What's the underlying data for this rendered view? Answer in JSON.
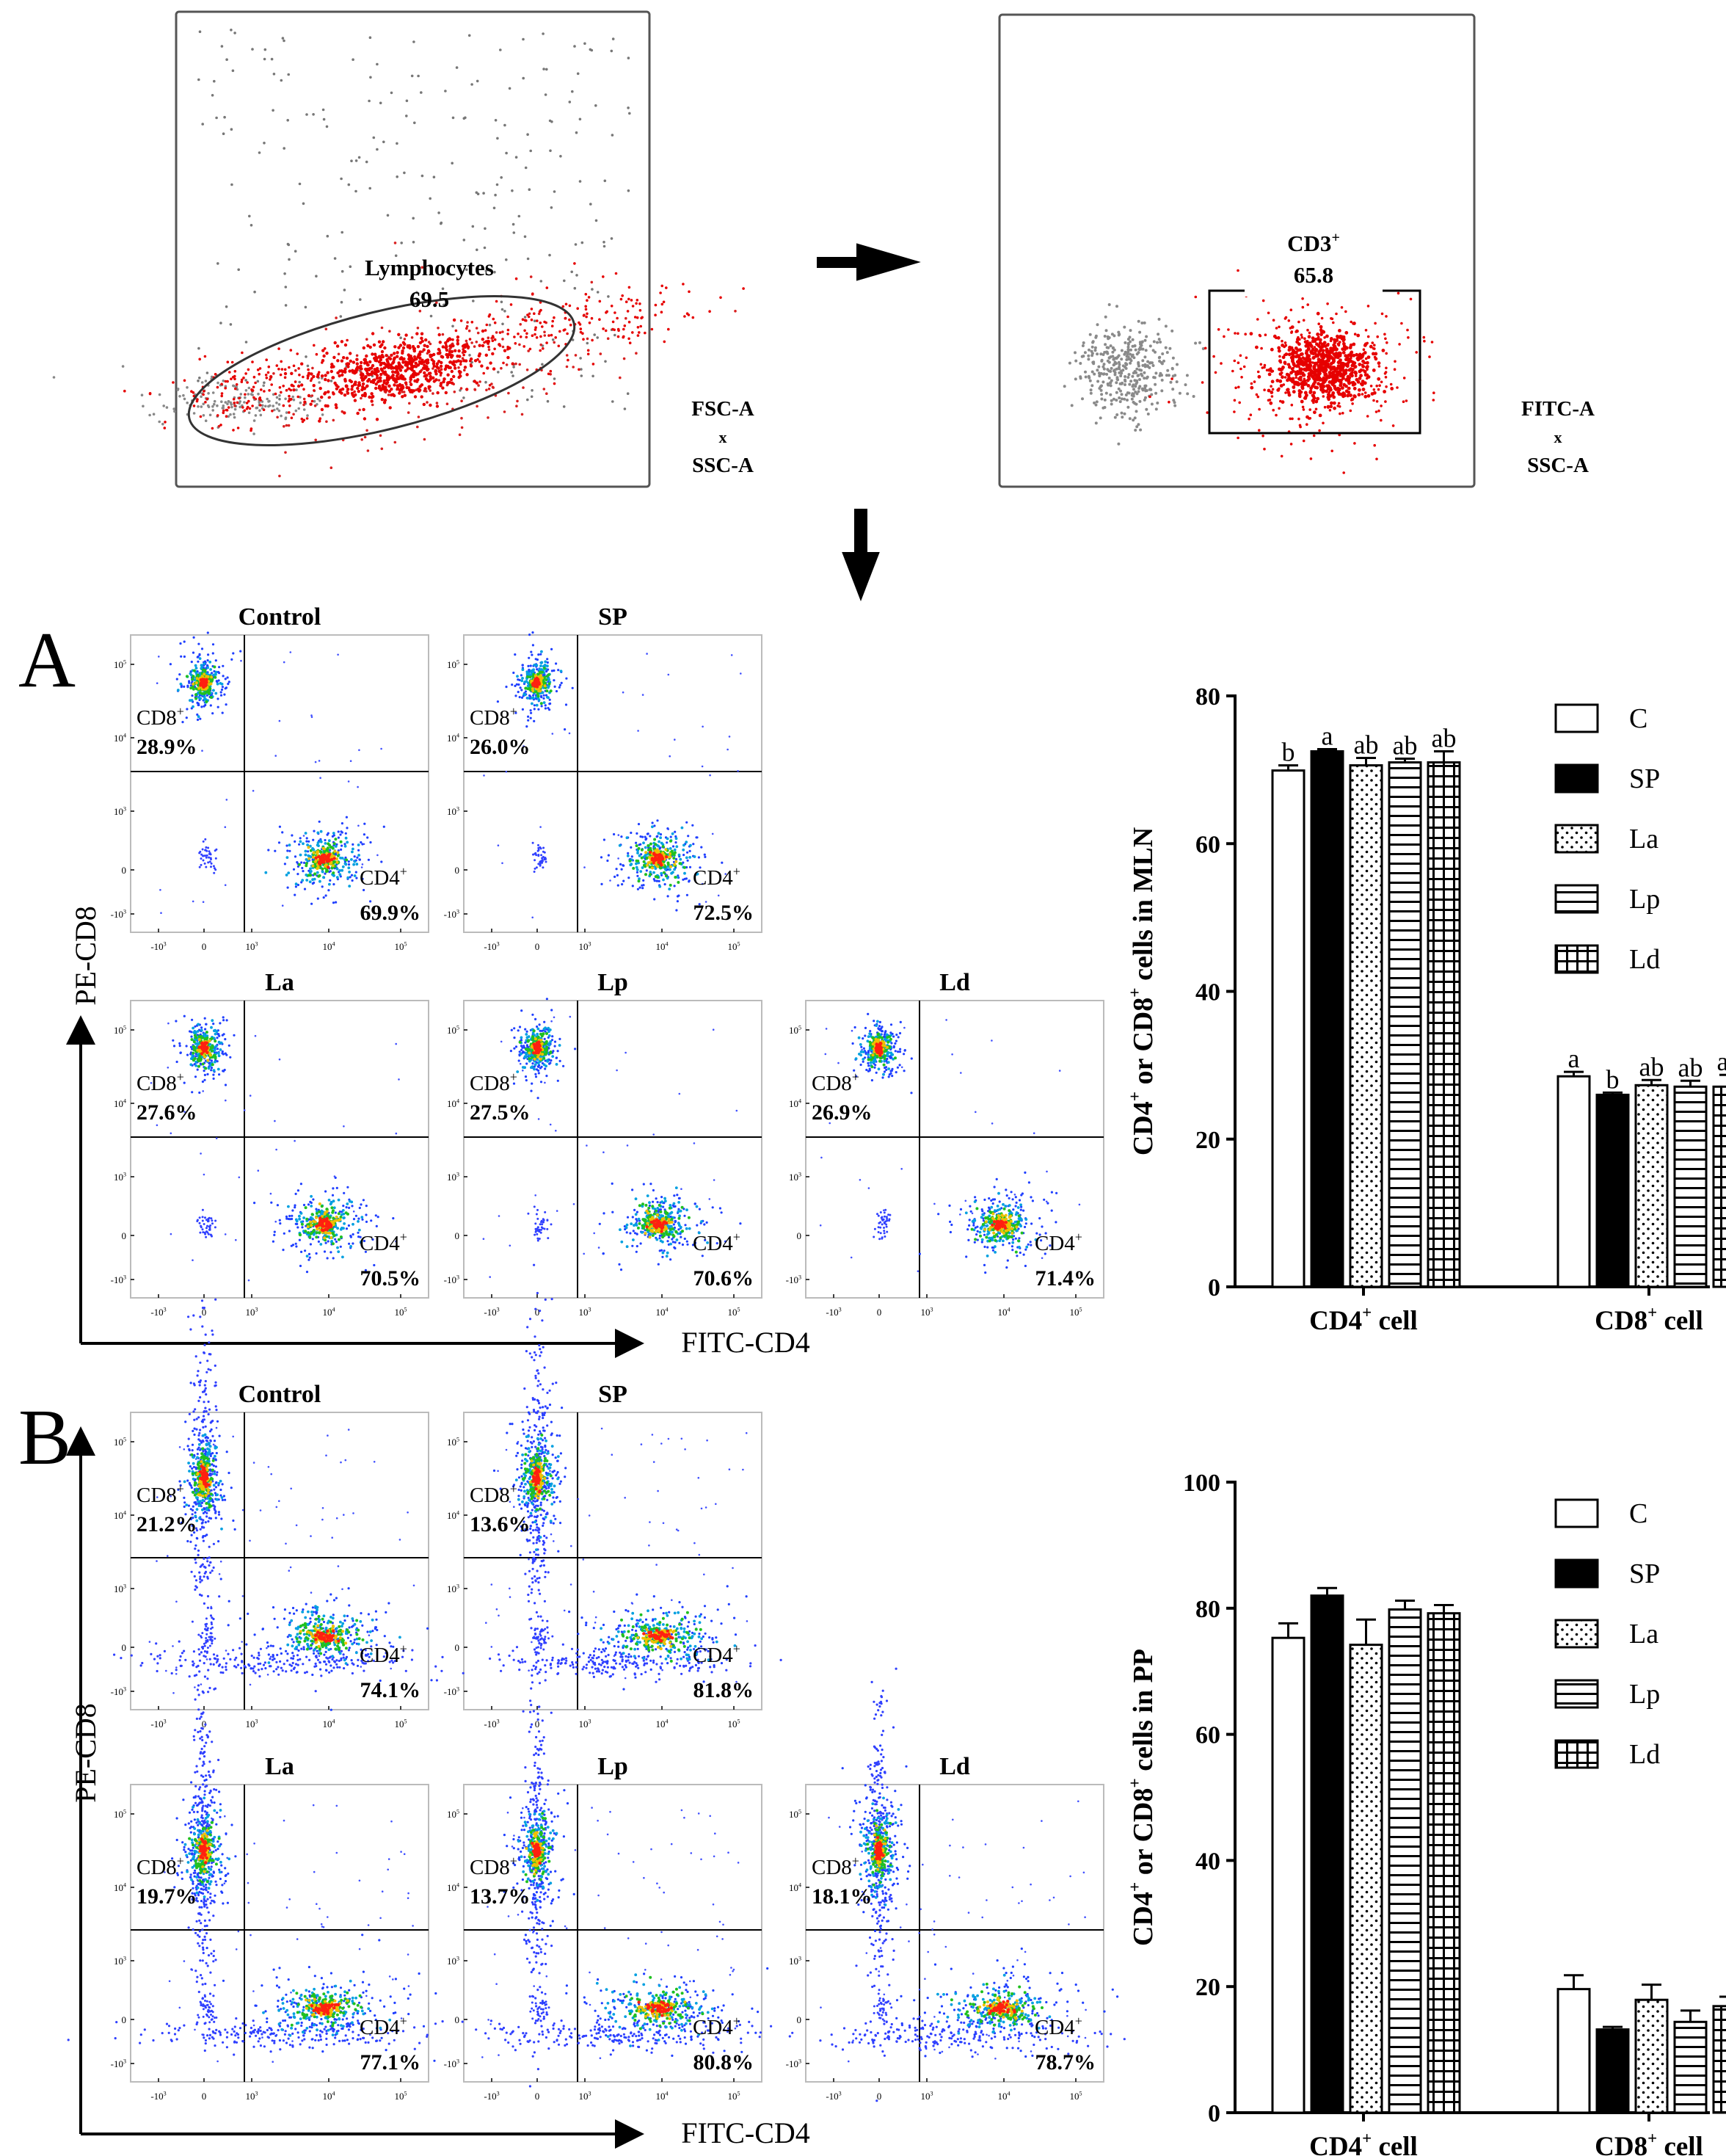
{
  "gating": {
    "plot1": {
      "gate_label": "Lymphocytes",
      "gate_value": "69.5",
      "axes_line1": "FSC-A",
      "axes_x": "x",
      "axes_line2": "SSC-A"
    },
    "plot2": {
      "gate_label_main": "CD3",
      "gate_label_sup": "+",
      "gate_value": "65.8",
      "axes_line1": "FITC-A",
      "axes_x": "x",
      "axes_line2": "SSC-A"
    }
  },
  "panels": [
    {
      "letter": "A",
      "y_axis_label": "PE-CD8",
      "x_axis_label": "FITC-CD4",
      "tick_labels": {
        "x": [
          [
            "-10",
            "3"
          ],
          [
            "0",
            ""
          ],
          [
            "10",
            "3"
          ],
          [
            "10",
            "4"
          ],
          [
            "10",
            "5"
          ]
        ],
        "y": [
          [
            "10",
            "5"
          ],
          [
            "10",
            "4"
          ],
          [
            "10",
            "3"
          ],
          [
            "0",
            ""
          ],
          [
            "-10",
            "3"
          ]
        ]
      },
      "cd8_label": [
        "CD8",
        "+"
      ],
      "cd4_label": [
        "CD4",
        "+"
      ],
      "plots": [
        {
          "title": "Control",
          "cd8_pct": "28.9%",
          "cd4_pct": "69.9%"
        },
        {
          "title": "SP",
          "cd8_pct": "26.0%",
          "cd4_pct": "72.5%"
        },
        {
          "title": "La",
          "cd8_pct": "27.6%",
          "cd4_pct": "70.5%"
        },
        {
          "title": "Lp",
          "cd8_pct": "27.5%",
          "cd4_pct": "70.6%"
        },
        {
          "title": "Ld",
          "cd8_pct": "26.9%",
          "cd4_pct": "71.4%"
        }
      ]
    },
    {
      "letter": "B",
      "y_axis_label": "PE-CD8",
      "x_axis_label": "FITC-CD4",
      "tick_labels": {
        "x": [
          [
            "-10",
            "3"
          ],
          [
            "0",
            ""
          ],
          [
            "10",
            "3"
          ],
          [
            "10",
            "4"
          ],
          [
            "10",
            "5"
          ]
        ],
        "y": [
          [
            "10",
            "5"
          ],
          [
            "10",
            "4"
          ],
          [
            "10",
            "3"
          ],
          [
            "0",
            ""
          ],
          [
            "-10",
            "3"
          ]
        ]
      },
      "cd8_label": [
        "CD8",
        "+"
      ],
      "cd4_label": [
        "CD4",
        "+"
      ],
      "plots": [
        {
          "title": "Control",
          "cd8_pct": "21.2%",
          "cd4_pct": "74.1%"
        },
        {
          "title": "SP",
          "cd8_pct": "13.6%",
          "cd4_pct": "81.8%"
        },
        {
          "title": "La",
          "cd8_pct": "19.7%",
          "cd4_pct": "77.1%"
        },
        {
          "title": "Lp",
          "cd8_pct": "13.7%",
          "cd4_pct": "80.8%"
        },
        {
          "title": "Ld",
          "cd8_pct": "18.1%",
          "cd4_pct": "78.7%"
        }
      ]
    }
  ],
  "chart_data": [
    {
      "type": "bar",
      "title": "",
      "ylabel": [
        "CD4",
        "+",
        " or CD8",
        "+",
        " cells in MLN"
      ],
      "ylim": [
        0,
        80
      ],
      "yticks": [
        0,
        20,
        40,
        60,
        80
      ],
      "categories": [
        [
          "CD4",
          "+",
          " cell"
        ],
        [
          "CD8",
          "+",
          " cell"
        ]
      ],
      "series": [
        {
          "name": "C",
          "pattern": "open",
          "values": [
            69.9,
            28.5
          ],
          "errors": [
            0.7,
            0.6
          ],
          "labels": [
            "b",
            "a"
          ]
        },
        {
          "name": "SP",
          "pattern": "solid",
          "values": [
            72.5,
            26.0
          ],
          "errors": [
            0.3,
            0.3
          ],
          "labels": [
            "a",
            "b"
          ]
        },
        {
          "name": "La",
          "pattern": "dots",
          "values": [
            70.6,
            27.3
          ],
          "errors": [
            1.0,
            0.7
          ],
          "labels": [
            "ab",
            "ab"
          ]
        },
        {
          "name": "Lp",
          "pattern": "hlines",
          "values": [
            71.0,
            27.1
          ],
          "errors": [
            0.5,
            0.8
          ],
          "labels": [
            "ab",
            "ab"
          ]
        },
        {
          "name": "Ld",
          "pattern": "grid",
          "values": [
            71.0,
            27.1
          ],
          "errors": [
            1.5,
            1.6
          ],
          "labels": [
            "ab",
            "ab"
          ]
        }
      ],
      "legend": "top-right"
    },
    {
      "type": "bar",
      "title": "",
      "ylabel": [
        "CD4",
        "+",
        " or CD8",
        "+",
        " cells in PP"
      ],
      "ylim": [
        0,
        100
      ],
      "yticks": [
        0,
        20,
        40,
        60,
        80,
        100
      ],
      "categories": [
        [
          "CD4",
          "+",
          " cell"
        ],
        [
          "CD8",
          "+",
          " cell"
        ]
      ],
      "series": [
        {
          "name": "C",
          "pattern": "open",
          "values": [
            75.3,
            19.6
          ],
          "errors": [
            2.3,
            2.2
          ],
          "labels": [
            "",
            ""
          ]
        },
        {
          "name": "SP",
          "pattern": "solid",
          "values": [
            82.0,
            13.2
          ],
          "errors": [
            1.2,
            0.4
          ],
          "labels": [
            "",
            ""
          ]
        },
        {
          "name": "La",
          "pattern": "dots",
          "values": [
            74.2,
            17.9
          ],
          "errors": [
            4.0,
            2.4
          ],
          "labels": [
            "",
            ""
          ]
        },
        {
          "name": "Lp",
          "pattern": "hlines",
          "values": [
            79.8,
            14.4
          ],
          "errors": [
            1.4,
            1.8
          ],
          "labels": [
            "",
            ""
          ]
        },
        {
          "name": "Ld",
          "pattern": "grid",
          "values": [
            79.2,
            16.9
          ],
          "errors": [
            1.3,
            1.5
          ],
          "labels": [
            "",
            ""
          ]
        }
      ],
      "legend": "top-right"
    }
  ]
}
